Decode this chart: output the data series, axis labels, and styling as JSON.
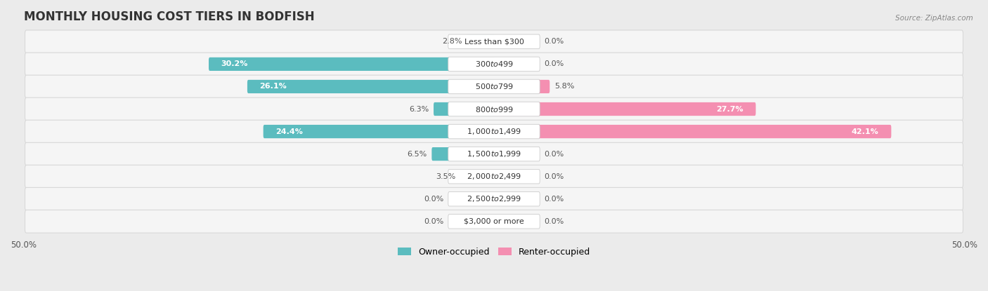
{
  "title": "MONTHLY HOUSING COST TIERS IN BODFISH",
  "source": "Source: ZipAtlas.com",
  "categories": [
    "Less than $300",
    "$300 to $499",
    "$500 to $799",
    "$800 to $999",
    "$1,000 to $1,499",
    "$1,500 to $1,999",
    "$2,000 to $2,499",
    "$2,500 to $2,999",
    "$3,000 or more"
  ],
  "owner_values": [
    2.8,
    30.2,
    26.1,
    6.3,
    24.4,
    6.5,
    3.5,
    0.0,
    0.0
  ],
  "renter_values": [
    0.0,
    0.0,
    5.8,
    27.7,
    42.1,
    0.0,
    0.0,
    0.0,
    0.0
  ],
  "owner_color": "#5bbcbf",
  "renter_color": "#f48fb1",
  "owner_label": "Owner-occupied",
  "renter_label": "Renter-occupied",
  "axis_limit": 50.0,
  "background_color": "#ebebeb",
  "row_bg_color": "#f5f5f5",
  "row_border_color": "#d8d8d8",
  "title_fontsize": 12,
  "bar_label_fontsize": 8,
  "category_fontsize": 8,
  "axis_label_fontsize": 8.5,
  "label_threshold": 8.0
}
